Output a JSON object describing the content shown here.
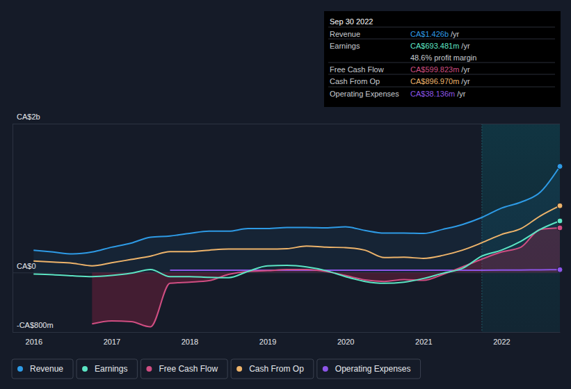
{
  "chart_data": {
    "type": "line",
    "x": [
      2016,
      2016.25,
      2016.5,
      2016.75,
      2017,
      2017.25,
      2017.5,
      2017.75,
      2018,
      2018.25,
      2018.5,
      2018.75,
      2019,
      2019.25,
      2019.5,
      2019.75,
      2020,
      2020.25,
      2020.5,
      2020.75,
      2021,
      2021.25,
      2021.5,
      2021.75,
      2022,
      2022.25,
      2022.5,
      2022.75
    ],
    "xlim": [
      2015.73,
      2022.75
    ],
    "xticks": [
      2016,
      2017,
      2018,
      2019,
      2020,
      2021,
      2022
    ],
    "ylim": [
      -800,
      2000
    ],
    "yticks": [
      {
        "value": -800,
        "label": "-CA$800m"
      },
      {
        "value": 0,
        "label": "CA$0"
      },
      {
        "value": 2000,
        "label": "CA$2b"
      }
    ],
    "grid": true,
    "legend": "bottom",
    "series": [
      {
        "name": "Revenue",
        "color": "#2e9be6",
        "values": [
          300,
          275,
          250,
          275,
          340,
          395,
          475,
          490,
          525,
          555,
          555,
          590,
          590,
          605,
          605,
          600,
          615,
          565,
          530,
          530,
          525,
          580,
          645,
          740,
          865,
          945,
          1080,
          1426
        ]
      },
      {
        "name": "Earnings",
        "color": "#5ce5c4",
        "values": [
          -20,
          -30,
          -45,
          -55,
          -40,
          -10,
          40,
          -55,
          -55,
          -65,
          -70,
          15,
          90,
          95,
          75,
          25,
          -55,
          -120,
          -145,
          -130,
          -80,
          -10,
          55,
          220,
          300,
          420,
          580,
          693
        ]
      },
      {
        "name": "Free Cash Flow",
        "color": "#d04e82",
        "values": [
          null,
          null,
          null,
          -690,
          -650,
          -660,
          -730,
          -145,
          -130,
          -110,
          -25,
          15,
          25,
          40,
          40,
          15,
          -40,
          -100,
          -120,
          -95,
          -105,
          -25,
          75,
          180,
          275,
          340,
          580,
          600
        ]
      },
      {
        "name": "Cash From Op",
        "color": "#eeb46b",
        "values": [
          155,
          140,
          125,
          90,
          130,
          175,
          220,
          280,
          280,
          300,
          315,
          315,
          315,
          320,
          355,
          340,
          335,
          300,
          200,
          205,
          190,
          230,
          300,
          400,
          510,
          590,
          760,
          897
        ]
      },
      {
        "name": "Operating Expenses",
        "color": "#8d55e8",
        "values": [
          null,
          null,
          null,
          null,
          null,
          null,
          null,
          30,
          30,
          30,
          30,
          30,
          30,
          30,
          30,
          30,
          30,
          30,
          30,
          30,
          30,
          30,
          30,
          30,
          32,
          34,
          36,
          38
        ]
      }
    ],
    "tooltip": {
      "title": "Sep 30 2022",
      "rows": [
        {
          "label": "Revenue",
          "value": "CA$1.426b",
          "unit": "/yr",
          "color": "#2e9be6"
        },
        {
          "label": "Earnings",
          "value": "CA$693.481m",
          "unit": "/yr",
          "color": "#5ce5c4"
        },
        {
          "label": "Free Cash Flow",
          "value": "CA$599.823m",
          "unit": "/yr",
          "color": "#d04e82"
        },
        {
          "label": "Cash From Op",
          "value": "CA$896.970m",
          "unit": "/yr",
          "color": "#eeb46b"
        },
        {
          "label": "Operating Expenses",
          "value": "CA$38.136m",
          "unit": "/yr",
          "color": "#8d55e8"
        }
      ],
      "note": "48.6% profit margin"
    }
  }
}
